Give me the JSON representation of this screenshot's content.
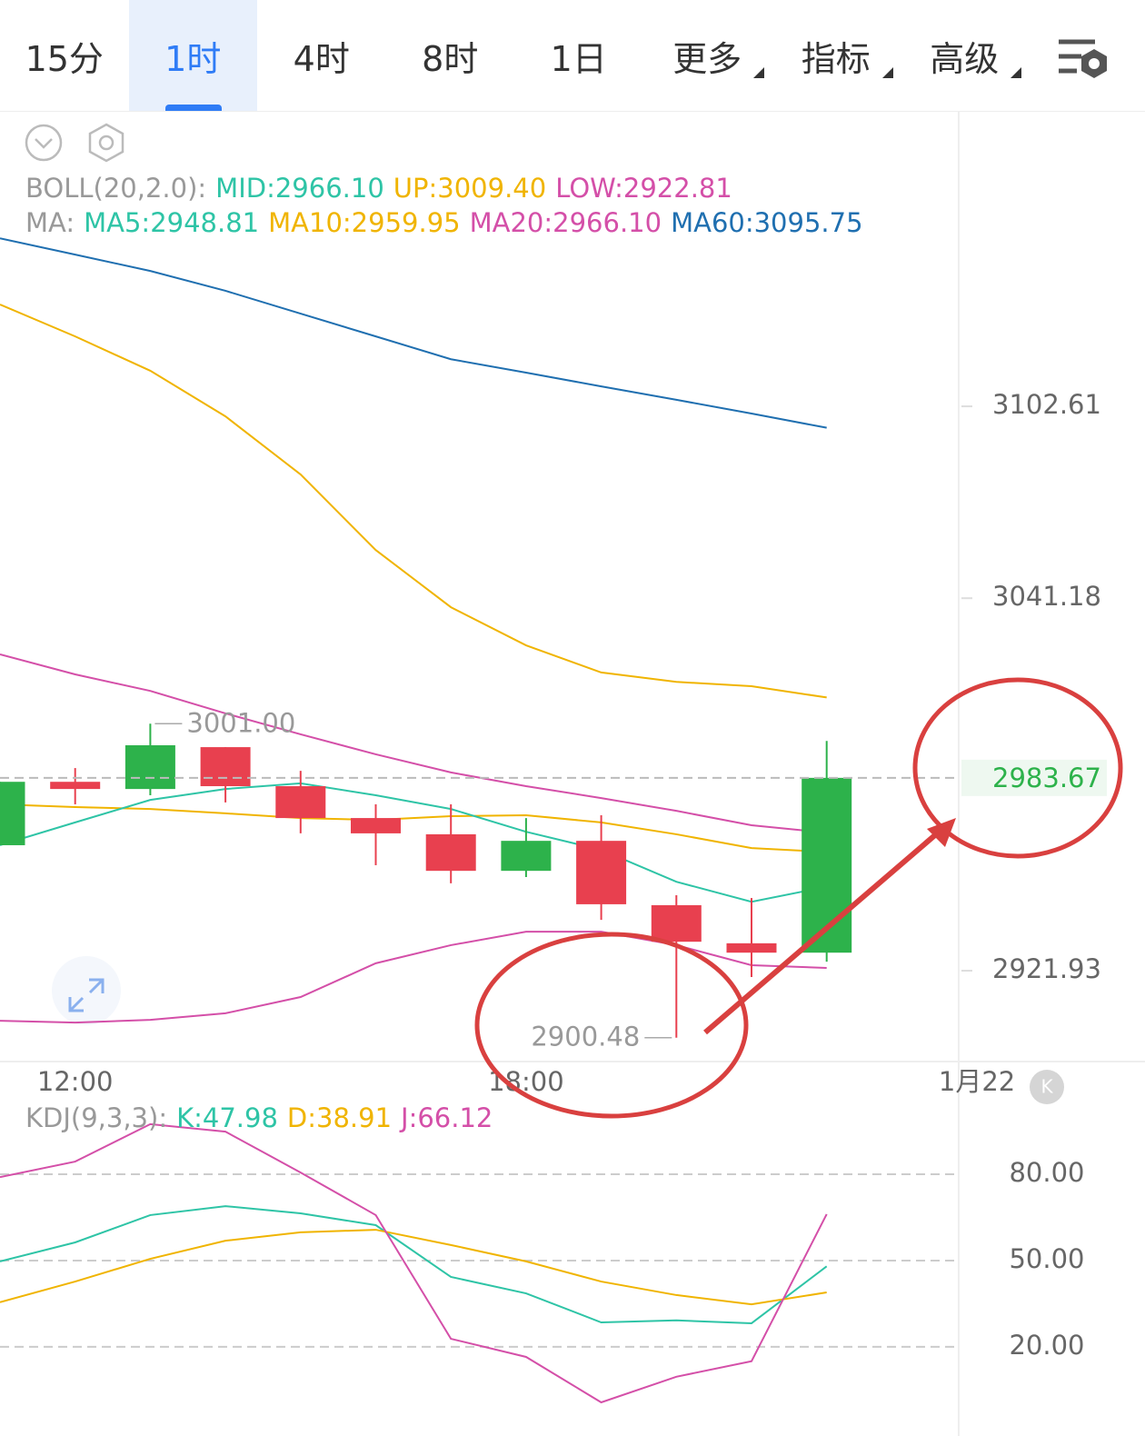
{
  "toolbar": {
    "tabs": [
      "15分",
      "1时",
      "4时",
      "8时",
      "1日",
      "更多",
      "指标",
      "高级"
    ],
    "active": 1,
    "dropdown_tabs": [
      5,
      6,
      7
    ]
  },
  "main": {
    "boll_legend": [
      {
        "text": "BOLL(20,2.0):",
        "color": "#999999"
      },
      {
        "text": "MID:2966.10",
        "color": "#2ec4a6"
      },
      {
        "text": "UP:3009.40",
        "color": "#f0b400"
      },
      {
        "text": "LOW:2922.81",
        "color": "#d44fa8"
      }
    ],
    "ma_legend": [
      {
        "text": "MA:",
        "color": "#999999"
      },
      {
        "text": "MA5:2948.81",
        "color": "#2ec4a6"
      },
      {
        "text": "MA10:2959.95",
        "color": "#f0b400"
      },
      {
        "text": "MA20:2966.10",
        "color": "#d44fa8"
      },
      {
        "text": "MA60:3095.75",
        "color": "#1f6fb0"
      }
    ],
    "ylim": [
      2892.84,
      3196.33
    ],
    "yticks": [
      3102.61,
      3041.18,
      2921.93
    ],
    "last_price": 2983.67,
    "last_price_color": "#2db24b",
    "up_color": "#2db24b",
    "down_color": "#e8404f",
    "candles": [
      {
        "open": 2962.1,
        "high": 2982.4,
        "low": 2962.1,
        "close": 2982.4
      },
      {
        "open": 2982.4,
        "high": 2986.8,
        "low": 2975.2,
        "close": 2980.1
      },
      {
        "open": 2980.1,
        "high": 3001,
        "low": 2978.1,
        "close": 2994.1
      },
      {
        "open": 2993.5,
        "high": 2993.5,
        "low": 2975.8,
        "close": 2981.0
      },
      {
        "open": 2981.0,
        "high": 2985.9,
        "low": 2965.9,
        "close": 2970.8
      },
      {
        "open": 2970.8,
        "high": 2975.2,
        "low": 2955.7,
        "close": 2965.9
      },
      {
        "open": 2965.6,
        "high": 2975.2,
        "low": 2949.9,
        "close": 2953.9
      },
      {
        "open": 2953.9,
        "high": 2970.8,
        "low": 2951.9,
        "close": 2963.5
      },
      {
        "open": 2963.5,
        "high": 2971.7,
        "low": 2938.2,
        "close": 2943.2
      },
      {
        "open": 2942.9,
        "high": 2946.1,
        "low": 2900.48,
        "close": 2931.2
      },
      {
        "open": 2930.7,
        "high": 2945.2,
        "low": 2919.9,
        "close": 2927.7
      },
      {
        "open": 2927.7,
        "high": 2995.5,
        "low": 2924.8,
        "close": 2983.67
      }
    ],
    "high_label": {
      "candle": 2,
      "label": "3001.00"
    },
    "low_label": {
      "candle": 9
    },
    "series": [
      {
        "color": "#1f6fb0",
        "values": [
          3156.4,
          3151.2,
          3145.95,
          3139.6,
          3132.3,
          3125.0,
          3117.7,
          3113.4,
          3109.0,
          3104.7,
          3100.3,
          3095.75
        ]
      },
      {
        "color": "#f0b400",
        "values": [
          3135.2,
          3125.0,
          3114.0,
          3099.4,
          3080.8,
          3056.6,
          3038.3,
          3026.1,
          3017.4,
          3014.4,
          3013.0,
          3009.4
        ]
      },
      {
        "color": "#d44fa8",
        "values": [
          3023.2,
          3016.8,
          3011.5,
          3004.3,
          2997.6,
          2991.2,
          2985.4,
          2981.0,
          2977.2,
          2973.1,
          2968.5,
          2966.1
        ]
      },
      {
        "color": "#f0b400",
        "values": [
          2975.2,
          2974.3,
          2973.7,
          2972.3,
          2970.8,
          2970.2,
          2971.4,
          2971.7,
          2969.4,
          2965.6,
          2961.2,
          2959.95
        ]
      },
      {
        "color": "#2ec4a6",
        "values": [
          2962.1,
          2969.4,
          2976.6,
          2980.1,
          2981.9,
          2978.1,
          2973.7,
          2966.4,
          2960.6,
          2950.4,
          2944.0,
          2948.81
        ]
      },
      {
        "color": "#d44fa8",
        "values": [
          2905.9,
          2905.3,
          2906.2,
          2908.3,
          2913.5,
          2924.3,
          2930.1,
          2934.4,
          2934.4,
          2930.1,
          2923.7,
          2922.81
        ]
      }
    ]
  },
  "x_axis": {
    "categories": [
      null,
      "12:00",
      null,
      null,
      null,
      null,
      null,
      "18:00",
      null,
      null,
      null,
      null,
      null,
      "1月22"
    ]
  },
  "kdj": {
    "legend": [
      {
        "text": "KDJ(9,3,3):",
        "color": "#999999"
      },
      {
        "text": "K:47.98",
        "color": "#2ec4a6"
      },
      {
        "text": "D:38.91",
        "color": "#f0b400"
      },
      {
        "text": "J:66.12",
        "color": "#d44fa8"
      }
    ],
    "ylim": [
      -7.2,
      105.9
    ],
    "yticks": [
      {
        "value": 80,
        "label": "80.00"
      },
      {
        "value": 50,
        "label": "50.00"
      },
      {
        "value": 20,
        "label": "20.00"
      }
    ],
    "grid": true,
    "series": [
      {
        "color": "#2ec4a6",
        "values": [
          49.7,
          56.3,
          65.8,
          68.9,
          66.4,
          62.3,
          44.3,
          38.6,
          28.5,
          29.2,
          28.2,
          47.98
        ]
      },
      {
        "color": "#f0b400",
        "values": [
          35.5,
          42.7,
          50.6,
          56.9,
          59.8,
          60.7,
          55.4,
          49.7,
          42.7,
          38.0,
          34.8,
          38.91
        ]
      },
      {
        "color": "#d44fa8",
        "values": [
          79.0,
          84.4,
          97.4,
          94.8,
          80.6,
          65.8,
          22.8,
          16.5,
          0.7,
          9.6,
          15.0,
          66.12
        ]
      }
    ]
  }
}
